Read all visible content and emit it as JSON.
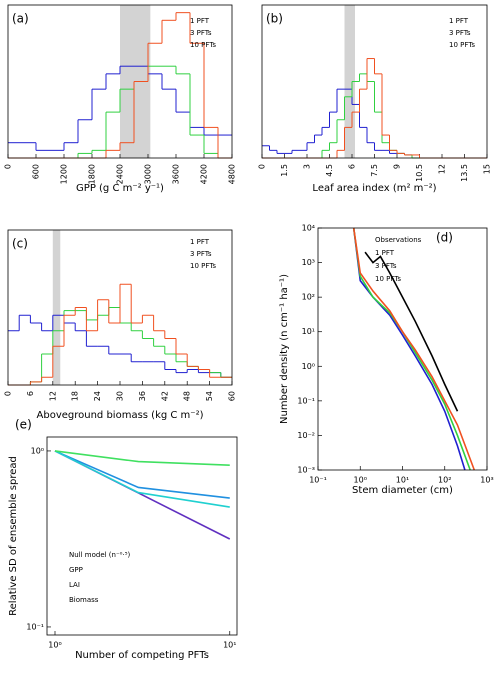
{
  "chart_data": [
    {
      "type": "histogram",
      "title": "(a)",
      "xlabel": "GPP (g C m⁻² y⁻¹)",
      "bins": [
        0,
        300,
        600,
        900,
        1200,
        1500,
        1800,
        2100,
        2400,
        2700,
        3000,
        3300,
        3600,
        3900,
        4200,
        4500,
        4800
      ],
      "xlim": [
        0,
        4800
      ],
      "xticks": [
        0,
        600,
        1200,
        1800,
        2400,
        3000,
        3600,
        4200,
        4800
      ],
      "ylim": [
        0,
        1
      ],
      "shade": [
        2400,
        3050
      ],
      "shade_color": "#d3d3d3",
      "series": [
        {
          "name": "1 PFT",
          "color": "#2020d0",
          "values": [
            0.1,
            0.1,
            0.05,
            0.05,
            0.1,
            0.25,
            0.45,
            0.55,
            0.6,
            0.6,
            0.55,
            0.45,
            0.3,
            0.2,
            0.15,
            0.15
          ]
        },
        {
          "name": "3 PFTs",
          "color": "#30d040",
          "values": [
            0,
            0,
            0,
            0,
            0,
            0.03,
            0.05,
            0.3,
            0.45,
            0.5,
            0.6,
            0.6,
            0.55,
            0.15,
            0.03,
            0
          ]
        },
        {
          "name": "10 PFTs",
          "color": "#f05020",
          "values": [
            0,
            0,
            0,
            0,
            0,
            0,
            0,
            0.05,
            0.1,
            0.5,
            0.75,
            0.9,
            0.95,
            0.75,
            0.2,
            0
          ]
        }
      ]
    },
    {
      "type": "histogram",
      "title": "(b)",
      "xlabel": "Leaf area index (m² m⁻²)",
      "bins": [
        0,
        0.5,
        1,
        1.5,
        2,
        2.5,
        3,
        3.5,
        4,
        4.5,
        5,
        5.5,
        6,
        6.5,
        7,
        7.5,
        8,
        8.5,
        9,
        9.5,
        10,
        10.5,
        11,
        11.5,
        12,
        12.5,
        13,
        13.5,
        14,
        14.5,
        15
      ],
      "xlim": [
        0,
        15
      ],
      "xticks": [
        0,
        1.5,
        3,
        4.5,
        6,
        7.5,
        9,
        10.5,
        12,
        13.5,
        15
      ],
      "ylim": [
        0,
        1
      ],
      "shade": [
        5.5,
        6.2
      ],
      "shade_color": "#d3d3d3",
      "series": [
        {
          "name": "1 PFT",
          "color": "#2020d0",
          "values": [
            0.08,
            0.05,
            0.03,
            0.03,
            0.05,
            0.05,
            0.1,
            0.15,
            0.2,
            0.3,
            0.45,
            0.45,
            0.35,
            0.2,
            0.1,
            0.05,
            0.05,
            0.03,
            0.03,
            0.02,
            0,
            0,
            0,
            0,
            0,
            0,
            0,
            0,
            0,
            0
          ]
        },
        {
          "name": "3 PFTs",
          "color": "#30d040",
          "values": [
            0,
            0,
            0,
            0,
            0,
            0,
            0,
            0,
            0.05,
            0.1,
            0.25,
            0.4,
            0.5,
            0.55,
            0.5,
            0.3,
            0.1,
            0.05,
            0.03,
            0.02,
            0,
            0,
            0,
            0,
            0,
            0,
            0,
            0,
            0,
            0
          ]
        },
        {
          "name": "10 PFTs",
          "color": "#f05020",
          "values": [
            0,
            0,
            0,
            0,
            0,
            0,
            0,
            0,
            0,
            0,
            0.05,
            0.2,
            0.3,
            0.45,
            0.65,
            0.55,
            0.15,
            0.05,
            0.03,
            0.02,
            0.02,
            0,
            0,
            0,
            0,
            0,
            0,
            0,
            0,
            0
          ]
        }
      ]
    },
    {
      "type": "histogram",
      "title": "(c)",
      "xlabel": "Aboveground biomass (kg C m⁻²)",
      "bins": [
        0,
        3,
        6,
        9,
        12,
        15,
        18,
        21,
        24,
        27,
        30,
        33,
        36,
        39,
        42,
        45,
        48,
        51,
        54,
        57,
        60
      ],
      "xlim": [
        0,
        60
      ],
      "xticks": [
        0,
        6,
        12,
        18,
        24,
        30,
        36,
        42,
        48,
        54,
        60
      ],
      "ylim": [
        0,
        1
      ],
      "shade": [
        12,
        14
      ],
      "shade_color": "#d3d3d3",
      "series": [
        {
          "name": "1 PFT",
          "color": "#2020d0",
          "values": [
            0.35,
            0.45,
            0.4,
            0.35,
            0.45,
            0.4,
            0.35,
            0.25,
            0.25,
            0.2,
            0.2,
            0.15,
            0.15,
            0.15,
            0.1,
            0.08,
            0.1,
            0.08,
            0.08,
            0.05
          ]
        },
        {
          "name": "3 PFTs",
          "color": "#30d040",
          "values": [
            0,
            0,
            0.02,
            0.2,
            0.35,
            0.48,
            0.48,
            0.42,
            0.45,
            0.5,
            0.4,
            0.35,
            0.3,
            0.25,
            0.2,
            0.15,
            0.12,
            0.1,
            0.08,
            0.05
          ]
        },
        {
          "name": "10 PFTs",
          "color": "#f05020",
          "values": [
            0,
            0,
            0.02,
            0.05,
            0.25,
            0.45,
            0.5,
            0.35,
            0.55,
            0.4,
            0.65,
            0.4,
            0.45,
            0.35,
            0.3,
            0.2,
            0.12,
            0.1,
            0.05,
            0.05
          ]
        }
      ]
    },
    {
      "type": "line",
      "title": "(d)",
      "xlabel": "Stem diameter (cm)",
      "ylabel": "Number density (n cm⁻¹ ha⁻¹)",
      "xlog": true,
      "ylog": true,
      "xlim": [
        0.1,
        1000
      ],
      "ylim": [
        0.001,
        10000
      ],
      "xticks": [
        {
          "value": 0.1,
          "label": "10⁻¹"
        },
        {
          "value": 1,
          "label": "10⁰"
        },
        {
          "value": 10,
          "label": "10¹"
        },
        {
          "value": 100,
          "label": "10²"
        },
        {
          "value": 1000,
          "label": "10³"
        }
      ],
      "yticks": [
        {
          "value": 0.001,
          "label": "10⁻³"
        },
        {
          "value": 0.01,
          "label": "10⁻²"
        },
        {
          "value": 0.1,
          "label": "10⁻¹"
        },
        {
          "value": 1,
          "label": "10⁰"
        },
        {
          "value": 10,
          "label": "10¹"
        },
        {
          "value": 100,
          "label": "10²"
        },
        {
          "value": 1000,
          "label": "10³"
        },
        {
          "value": 10000,
          "label": "10⁴"
        }
      ],
      "series": [
        {
          "name": "Observations",
          "color": "#000000",
          "x": [
            1.3,
            2,
            3,
            5,
            10,
            20,
            50,
            100,
            200
          ],
          "values": [
            2000,
            1000,
            1500,
            500,
            100,
            20,
            2,
            0.3,
            0.05
          ]
        },
        {
          "name": "1 PFT",
          "color": "#2020d0",
          "x": [
            0.7,
            1,
            2,
            5,
            10,
            20,
            50,
            100,
            200,
            300
          ],
          "values": [
            10000,
            300,
            100,
            30,
            8,
            2,
            0.3,
            0.05,
            0.005,
            0.001
          ]
        },
        {
          "name": "3 PFTs",
          "color": "#30d040",
          "x": [
            0.7,
            1,
            2,
            5,
            10,
            20,
            50,
            100,
            200,
            400
          ],
          "values": [
            10000,
            400,
            100,
            35,
            10,
            2.5,
            0.4,
            0.08,
            0.01,
            0.001
          ]
        },
        {
          "name": "10 PFTs",
          "color": "#f05020",
          "x": [
            0.7,
            1,
            2,
            5,
            10,
            20,
            50,
            100,
            200,
            500
          ],
          "values": [
            10000,
            500,
            150,
            40,
            10,
            3,
            0.5,
            0.1,
            0.02,
            0.001
          ]
        }
      ]
    },
    {
      "type": "line",
      "title": "(e)",
      "xlabel": "Number of competing PFTs",
      "ylabel": "Relative SD of ensemble spread",
      "xlog": true,
      "ylog": true,
      "xlim": [
        0.9,
        11
      ],
      "ylim": [
        0.09,
        1.2
      ],
      "xticks": [
        {
          "value": 1,
          "label": "10⁰"
        },
        {
          "value": 10,
          "label": "10¹"
        }
      ],
      "yticks": [
        {
          "value": 0.1,
          "label": "10⁻¹"
        },
        {
          "value": 1,
          "label": "10⁰"
        }
      ],
      "series": [
        {
          "name": "Null model (n⁻⁰·⁵)",
          "color": "#6030c0",
          "x": [
            1,
            3,
            10
          ],
          "values": [
            1,
            0.577,
            0.316
          ]
        },
        {
          "name": "GPP",
          "color": "#2090e0",
          "x": [
            1,
            3,
            10
          ],
          "values": [
            1,
            0.62,
            0.54
          ]
        },
        {
          "name": "LAI",
          "color": "#20d0d0",
          "x": [
            1,
            3,
            10
          ],
          "values": [
            1,
            0.58,
            0.48
          ]
        },
        {
          "name": "Biomass",
          "color": "#40e060",
          "x": [
            1,
            3,
            10
          ],
          "values": [
            1,
            0.87,
            0.83
          ]
        }
      ]
    }
  ]
}
